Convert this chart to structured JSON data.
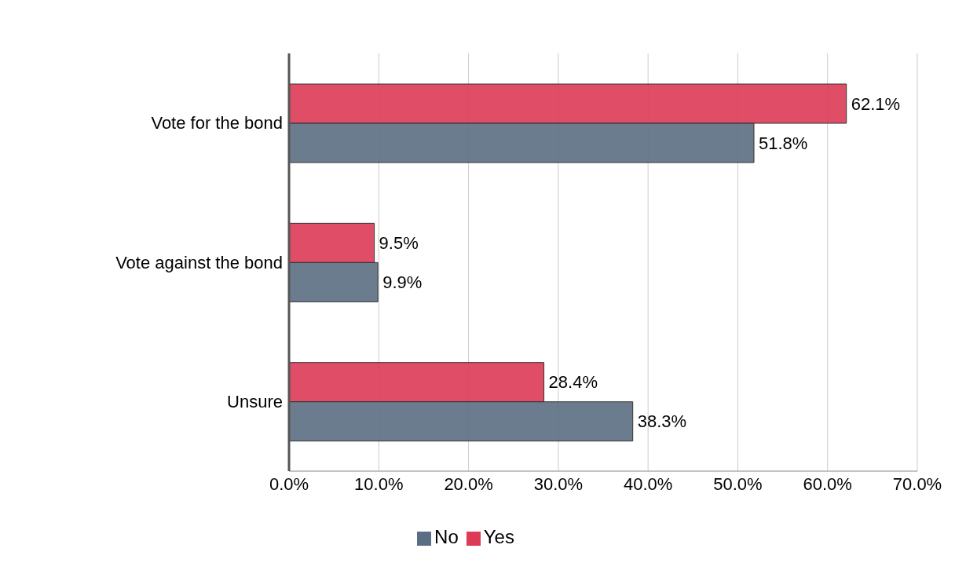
{
  "chart_data": {
    "type": "bar",
    "orientation": "horizontal",
    "categories": [
      "Vote for the bond",
      "Vote against the bond",
      "Unsure"
    ],
    "series": [
      {
        "name": "Yes",
        "color": "#dc3a55",
        "values": [
          62.1,
          9.5,
          28.4
        ],
        "value_labels": [
          "62.1%",
          "9.5%",
          "28.4%"
        ]
      },
      {
        "name": "No",
        "color": "#5b6e83",
        "values": [
          51.8,
          9.9,
          38.3
        ],
        "value_labels": [
          "51.8%",
          "9.9%",
          "38.3%"
        ]
      }
    ],
    "xlim": [
      0,
      70
    ],
    "xticks": [
      {
        "value": 0,
        "label": "0.0%"
      },
      {
        "value": 10,
        "label": "10.0%"
      },
      {
        "value": 20,
        "label": "20.0%"
      },
      {
        "value": 30,
        "label": "30.0%"
      },
      {
        "value": 40,
        "label": "40.0%"
      },
      {
        "value": 50,
        "label": "50.0%"
      },
      {
        "value": 60,
        "label": "60.0%"
      },
      {
        "value": 70,
        "label": "70.0%"
      }
    ],
    "grid": "x",
    "legend": "bottom"
  }
}
